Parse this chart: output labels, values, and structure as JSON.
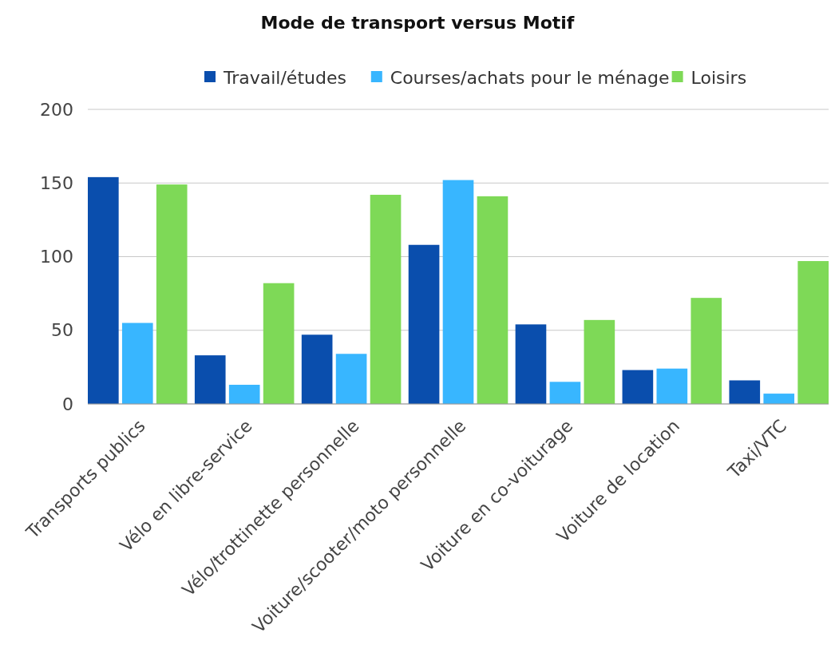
{
  "chart_data": {
    "type": "bar",
    "title": "Mode de transport versus Motif",
    "categories": [
      "Transports publics",
      "Vélo en libre-service",
      "Vélo/trottinette personnelle",
      "Voiture/scooter/moto personnelle",
      "Voiture en co-voiturage",
      "Voiture de location",
      "Taxi/VTC"
    ],
    "series": [
      {
        "name": "Travail/études",
        "color": "#0a4ead",
        "values": [
          154,
          33,
          47,
          108,
          54,
          23,
          16
        ]
      },
      {
        "name": "Courses/achats pour le ménage",
        "color": "#38b6ff",
        "values": [
          55,
          13,
          34,
          152,
          15,
          24,
          7
        ]
      },
      {
        "name": "Loisirs",
        "color": "#7ed957",
        "values": [
          149,
          82,
          142,
          141,
          57,
          72,
          97
        ]
      }
    ],
    "ylim": [
      0,
      200
    ],
    "yticks": [
      0,
      50,
      100,
      150,
      200
    ],
    "grid": "y",
    "legend": "top"
  }
}
